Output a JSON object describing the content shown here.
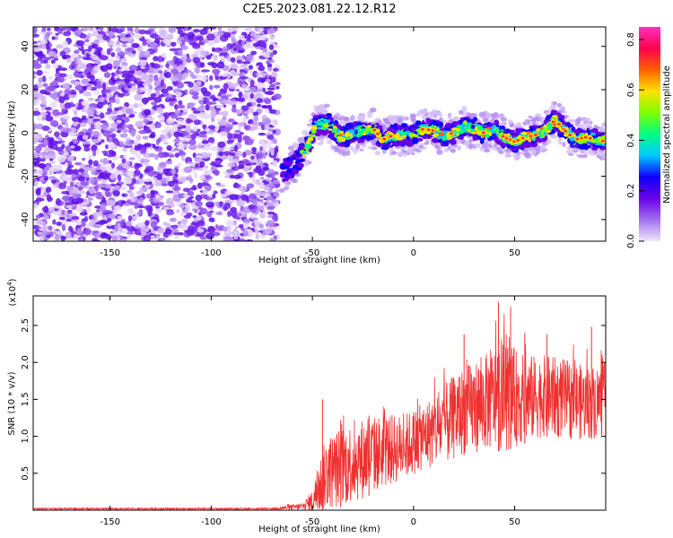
{
  "title": "C2E5.2023.081.22.12.R12",
  "chart_data": [
    {
      "type": "heatmap",
      "xlabel": "Height of straight line (km)",
      "ylabel": "Frequency (Hz)",
      "xlim": [
        -188,
        95
      ],
      "ylim": [
        -50,
        49
      ],
      "x_ticks": [
        -150,
        -100,
        -50,
        0,
        50
      ],
      "y_ticks": [
        -40,
        -20,
        0,
        20,
        40
      ],
      "colorbar": {
        "label": "Normalized spectral amplitude",
        "range": [
          0.0,
          0.85
        ],
        "ticks": [
          0.0,
          0.2,
          0.4,
          0.6,
          0.8
        ],
        "colors": [
          "#f2e6fb",
          "#a070f0",
          "#6a00e8",
          "#1000ff",
          "#00c8ff",
          "#00ff80",
          "#80ff00",
          "#ffe000",
          "#ff6000",
          "#ff0050",
          "#ff30c0"
        ]
      },
      "noise_region": {
        "x": [
          -188,
          -67
        ],
        "y": [
          -50,
          49
        ],
        "amplitude": [
          0.02,
          0.12
        ]
      },
      "ridge": [
        {
          "x": -65,
          "y": -18
        },
        {
          "x": -58,
          "y": -14
        },
        {
          "x": -52,
          "y": -6
        },
        {
          "x": -48,
          "y": 4
        },
        {
          "x": -42,
          "y": 4
        },
        {
          "x": -36,
          "y": -2
        },
        {
          "x": -30,
          "y": 0
        },
        {
          "x": -25,
          "y": 1
        },
        {
          "x": -20,
          "y": 2
        },
        {
          "x": -15,
          "y": -3
        },
        {
          "x": -10,
          "y": -1
        },
        {
          "x": -5,
          "y": -1
        },
        {
          "x": 0,
          "y": -1
        },
        {
          "x": 5,
          "y": 2
        },
        {
          "x": 10,
          "y": 1
        },
        {
          "x": 15,
          "y": -1
        },
        {
          "x": 20,
          "y": 0
        },
        {
          "x": 25,
          "y": 3
        },
        {
          "x": 30,
          "y": 2
        },
        {
          "x": 35,
          "y": 0
        },
        {
          "x": 40,
          "y": 1
        },
        {
          "x": 45,
          "y": -2
        },
        {
          "x": 50,
          "y": -4
        },
        {
          "x": 55,
          "y": -2
        },
        {
          "x": 60,
          "y": -1
        },
        {
          "x": 65,
          "y": 1
        },
        {
          "x": 70,
          "y": 6
        },
        {
          "x": 75,
          "y": 1
        },
        {
          "x": 80,
          "y": -3
        },
        {
          "x": 85,
          "y": -2
        },
        {
          "x": 90,
          "y": -3
        },
        {
          "x": 95,
          "y": -4
        }
      ]
    },
    {
      "type": "line",
      "xlabel": "Height of straight line (km)",
      "ylabel": "SNR (10 * v/v)",
      "y_multiplier_label": "(x10",
      "y_multiplier_exp": "4",
      "y_multiplier_close": ")",
      "xlim": [
        -188,
        95
      ],
      "ylim": [
        0,
        2.9
      ],
      "x_ticks": [
        -150,
        -100,
        -50,
        0,
        50
      ],
      "y_ticks": [
        0.5,
        1.0,
        1.5,
        2.0,
        2.5
      ],
      "color": "#f03030",
      "envelope": [
        {
          "x": -188,
          "mean": 0.02,
          "amp": 0.01
        },
        {
          "x": -70,
          "mean": 0.02,
          "amp": 0.01
        },
        {
          "x": -55,
          "mean": 0.05,
          "amp": 0.05
        },
        {
          "x": -50,
          "mean": 0.12,
          "amp": 0.15
        },
        {
          "x": -47,
          "mean": 0.3,
          "amp": 0.35
        },
        {
          "x": -43,
          "mean": 0.5,
          "amp": 0.5
        },
        {
          "x": -35,
          "mean": 0.6,
          "amp": 0.55
        },
        {
          "x": -25,
          "mean": 0.7,
          "amp": 0.55
        },
        {
          "x": -15,
          "mean": 0.8,
          "amp": 0.5
        },
        {
          "x": -5,
          "mean": 0.85,
          "amp": 0.45
        },
        {
          "x": 5,
          "mean": 1.0,
          "amp": 0.45
        },
        {
          "x": 15,
          "mean": 1.15,
          "amp": 0.55
        },
        {
          "x": 25,
          "mean": 1.35,
          "amp": 0.6
        },
        {
          "x": 35,
          "mean": 1.45,
          "amp": 0.65
        },
        {
          "x": 45,
          "mean": 1.55,
          "amp": 0.75
        },
        {
          "x": 55,
          "mean": 1.5,
          "amp": 0.6
        },
        {
          "x": 65,
          "mean": 1.55,
          "amp": 0.55
        },
        {
          "x": 75,
          "mean": 1.5,
          "amp": 0.55
        },
        {
          "x": 85,
          "mean": 1.45,
          "amp": 0.5
        },
        {
          "x": 95,
          "mean": 1.5,
          "amp": 0.5
        }
      ],
      "peaks": [
        {
          "x": -45,
          "y": 1.5
        },
        {
          "x": -36,
          "y": 1.22
        },
        {
          "x": -22,
          "y": 1.28
        },
        {
          "x": 25,
          "y": 2.38
        },
        {
          "x": 42,
          "y": 2.82
        },
        {
          "x": 48,
          "y": 2.75
        },
        {
          "x": 55,
          "y": 2.4
        },
        {
          "x": 66,
          "y": 2.38
        },
        {
          "x": 88,
          "y": 2.48
        }
      ]
    }
  ]
}
